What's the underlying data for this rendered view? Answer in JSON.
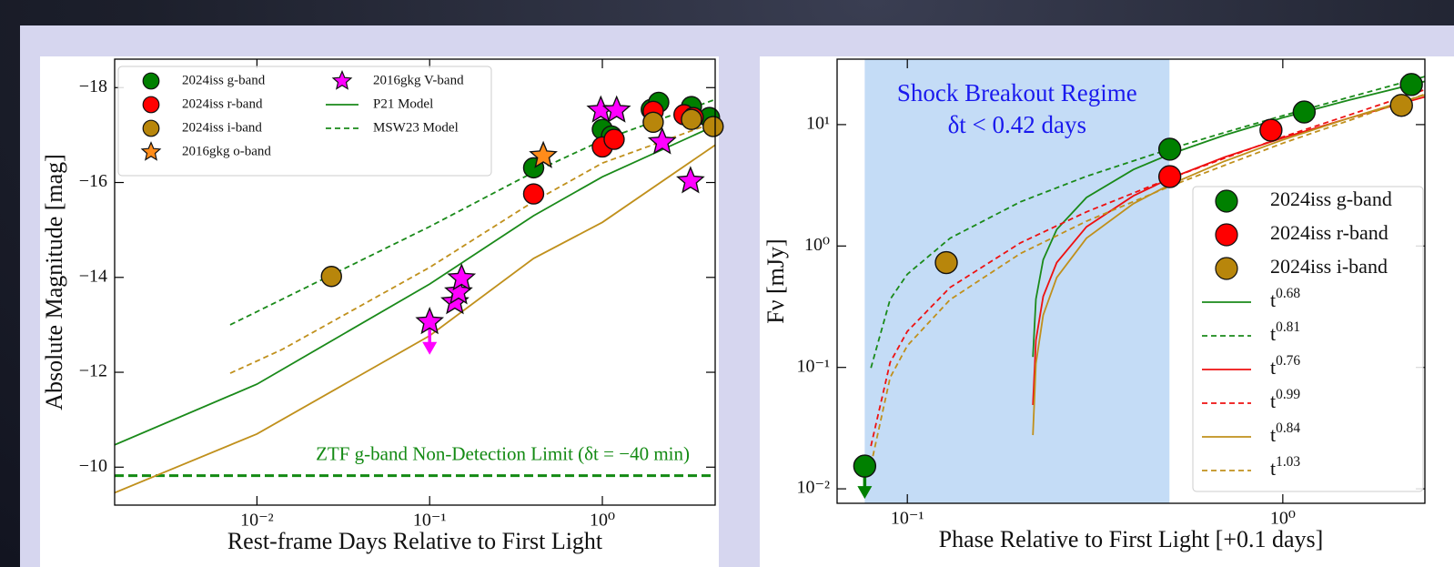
{
  "chart_data": [
    {
      "type": "scatter",
      "xlabel": "Rest-frame Days Relative to First Light",
      "ylabel": "Absolute Magnitude [mag]",
      "xscale": "log",
      "xlim": [
        0.0015,
        4.5
      ],
      "ylim": [
        -9.2,
        -18.6
      ],
      "xticks": [
        {
          "value": 0.01,
          "label": "10⁻²"
        },
        {
          "value": 0.1,
          "label": "10⁻¹"
        },
        {
          "value": 1,
          "label": "10⁰"
        }
      ],
      "yticks": [
        {
          "value": -18,
          "label": "−18"
        },
        {
          "value": -16,
          "label": "−16"
        },
        {
          "value": -14,
          "label": "−14"
        },
        {
          "value": -12,
          "label": "−12"
        },
        {
          "value": -10,
          "label": "−10"
        }
      ],
      "legend": "upper left",
      "legend_columns": 2,
      "series": [
        {
          "name": "2024iss g-band",
          "color": "#008000",
          "marker": "circle",
          "x": [
            0.4,
            1.0,
            1.13,
            1.92,
            2.12,
            3.28,
            4.17
          ],
          "values": [
            -16.31,
            -17.12,
            -16.98,
            -17.54,
            -17.69,
            -17.6,
            -17.37
          ]
        },
        {
          "name": "2024iss r-band",
          "color": "#ff0000",
          "marker": "circle",
          "x": [
            0.4,
            1.0,
            1.17,
            1.97,
            2.97,
            3.36
          ],
          "values": [
            -15.76,
            -16.75,
            -16.91,
            -17.5,
            -17.43,
            -17.37
          ]
        },
        {
          "name": "2024iss i-band",
          "color": "#b8860b",
          "marker": "circle",
          "x": [
            0.027,
            1.97,
            3.28,
            4.38
          ],
          "values": [
            -14.02,
            -17.27,
            -17.33,
            -17.18
          ]
        },
        {
          "name": "2016gkg o-band",
          "color": "#ff8c1a",
          "marker": "star",
          "x": [
            0.455
          ],
          "values": [
            -16.56
          ]
        },
        {
          "name": "2016gkg V-band",
          "color": "#ff00ff",
          "marker": "star",
          "x": [
            0.1,
            0.14,
            0.147,
            0.153,
            0.98,
            1.21,
            2.22,
            3.24
          ],
          "values": [
            -13.06,
            -13.48,
            -13.69,
            -13.98,
            -17.52,
            -17.52,
            -16.85,
            -16.03
          ],
          "upper_limit": [
            true,
            false,
            false,
            false,
            false,
            false,
            false,
            false
          ]
        },
        {
          "name": "P21 Model",
          "color": "#1a8a1a",
          "linestyle": "solid",
          "x": [
            0.0015,
            0.01,
            0.1,
            0.4,
            1,
            4.5
          ],
          "values": [
            -10.47,
            -11.75,
            -13.86,
            -15.3,
            -16.12,
            -17.2
          ]
        },
        {
          "name": "MSW23 Model",
          "color": "#1a8a1a",
          "linestyle": "dashed",
          "x": [
            0.007,
            0.014,
            0.1,
            0.4,
            1,
            4.5
          ],
          "values": [
            -13.0,
            -13.54,
            -15.07,
            -16.22,
            -16.89,
            -17.75
          ]
        },
        {
          "color": "#c0901c",
          "linestyle": "solid",
          "x": [
            0.0015,
            0.01,
            0.1,
            0.4,
            1,
            4.5
          ],
          "values": [
            -9.46,
            -10.7,
            -12.77,
            -14.4,
            -15.16,
            -16.79
          ]
        },
        {
          "color": "#c0901c",
          "linestyle": "dashed",
          "x": [
            0.007,
            0.014,
            0.1,
            0.4,
            1,
            4.5
          ],
          "values": [
            -11.98,
            -12.48,
            -14.21,
            -15.6,
            -16.41,
            -17.27
          ]
        }
      ],
      "hline": {
        "value": -9.82,
        "color": "#138a13",
        "linestyle": "dashed"
      },
      "annotation": "ZTF g-band Non-Detection Limit (δt = −40 min)"
    },
    {
      "type": "scatter",
      "xlabel": "Phase Relative to First Light [+0.1 days]",
      "ylabel": "Fν [mJy]",
      "xscale": "log",
      "yscale": "log",
      "xlim": [
        0.065,
        2.39
      ],
      "ylim": [
        0.0076,
        34.6
      ],
      "xticks": [
        {
          "value": 0.1,
          "label": "10⁻¹"
        },
        {
          "value": 1,
          "label": "10⁰"
        }
      ],
      "yticks": [
        {
          "value": 0.01,
          "label": "10⁻²"
        },
        {
          "value": 0.1,
          "label": "10⁻¹"
        },
        {
          "value": 1,
          "label": "10⁰"
        },
        {
          "value": 10,
          "label": "10¹"
        }
      ],
      "legend": "lower right",
      "legend_columns": 1,
      "shaded_region": {
        "x": [
          0.077,
          0.499
        ],
        "color": "#c4dcf6",
        "title": "Shock Breakout Regime",
        "label": "δt < 0.42 days",
        "text_color": "#1a1aee"
      },
      "series": [
        {
          "name": "2024iss g-band",
          "color": "#008000",
          "marker": "circle",
          "x": [
            0.077,
            0.5,
            1.14,
            2.2
          ],
          "values": [
            0.0154,
            6.27,
            12.7,
            21.4
          ],
          "upper_limit": [
            true,
            false,
            false,
            false
          ]
        },
        {
          "name": "2024iss r-band",
          "color": "#ff0000",
          "marker": "circle",
          "x": [
            0.5,
            0.93
          ],
          "values": [
            3.73,
            9.0
          ]
        },
        {
          "name": "2024iss i-band",
          "color": "#b8860b",
          "marker": "circle",
          "x": [
            0.127,
            2.07
          ],
          "values": [
            0.73,
            14.4
          ]
        },
        {
          "name": "t^0.68",
          "color": "#1a8a1a",
          "linestyle": "solid",
          "x": [
            0.216,
            0.22,
            0.23,
            0.25,
            0.3,
            0.4,
            0.5,
            0.7,
            1.0,
            1.5,
            2.39
          ],
          "values": [
            0.122,
            0.365,
            0.77,
            1.37,
            2.51,
            4.26,
            5.7,
            8.19,
            11.4,
            15.9,
            22.7
          ]
        },
        {
          "name": "t^0.81",
          "color": "#1a8a1a",
          "linestyle": "dashed",
          "x": [
            0.08,
            0.09,
            0.1,
            0.13,
            0.2,
            0.3,
            0.5,
            0.7,
            1.0,
            1.5,
            2.39
          ],
          "values": [
            0.099,
            0.364,
            0.586,
            1.16,
            2.31,
            3.75,
            6.3,
            8.6,
            11.85,
            16.8,
            24.9
          ]
        },
        {
          "name": "t^0.76",
          "color": "#ee1111",
          "linestyle": "solid",
          "x": [
            0.216,
            0.22,
            0.23,
            0.25,
            0.3,
            0.4,
            0.5,
            0.7,
            1.0,
            1.5,
            2.39
          ],
          "values": [
            0.049,
            0.167,
            0.384,
            0.73,
            1.44,
            2.59,
            3.6,
            5.4,
            7.78,
            11.3,
            16.9
          ]
        },
        {
          "name": "t^0.99",
          "color": "#ee1111",
          "linestyle": "dashed",
          "x": [
            0.08,
            0.09,
            0.1,
            0.13,
            0.2,
            0.3,
            0.5,
            0.7,
            1.0,
            1.5,
            2.39
          ],
          "values": [
            0.0225,
            0.11,
            0.198,
            0.456,
            1.06,
            1.91,
            3.6,
            5.29,
            7.92,
            11.97,
            19.4
          ]
        },
        {
          "name": "t^0.84",
          "color": "#c0901c",
          "linestyle": "solid",
          "x": [
            0.216,
            0.22,
            0.23,
            0.25,
            0.3,
            0.4,
            0.5,
            0.7,
            1.0,
            1.5,
            2.39
          ],
          "values": [
            0.0277,
            0.107,
            0.27,
            0.55,
            1.16,
            2.23,
            3.2,
            5.0,
            7.5,
            11.3,
            17.6
          ]
        },
        {
          "name": "t^1.03",
          "color": "#c0901c",
          "linestyle": "dashed",
          "x": [
            0.08,
            0.09,
            0.1,
            0.13,
            0.2,
            0.3,
            0.5,
            0.7,
            1.0,
            1.5,
            2.39
          ],
          "values": [
            0.0157,
            0.0826,
            0.151,
            0.362,
            0.866,
            1.6,
            3.1,
            4.62,
            7.03,
            10.8,
            17.8
          ]
        }
      ]
    }
  ]
}
